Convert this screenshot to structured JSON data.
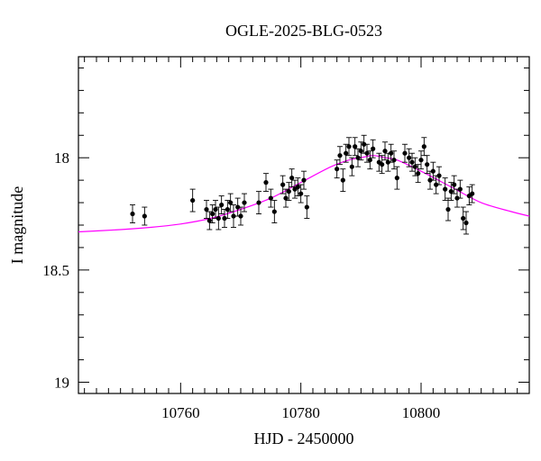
{
  "chart_data": {
    "type": "scatter",
    "title": "OGLE-2025-BLG-0523",
    "xlabel": "HJD - 2450000",
    "ylabel": "I magnitude",
    "xlim": [
      10743,
      10818
    ],
    "ylim": [
      19.05,
      17.55
    ],
    "y_inverted": true,
    "grid": false,
    "x_major_ticks": [
      10760,
      10780,
      10800
    ],
    "x_tick_labels": [
      "10760",
      "10780",
      "10800"
    ],
    "y_major_ticks": [
      18,
      18.5,
      19
    ],
    "y_tick_labels": [
      "18",
      "18.5",
      "19"
    ],
    "colors": {
      "points": "#000000",
      "model": "#ff00ff"
    },
    "series": [
      {
        "type": "scatter_errorbars",
        "x": [
          10752.0,
          10754.0,
          10762.0,
          10764.3,
          10764.8,
          10765.3,
          10765.8,
          10766.3,
          10766.8,
          10767.3,
          10767.8,
          10768.3,
          10768.8,
          10769.5,
          10770.0,
          10770.6,
          10773.0,
          10774.2,
          10775.0,
          10775.6,
          10777.0,
          10777.5,
          10778.0,
          10778.5,
          10779.0,
          10779.5,
          10780.0,
          10780.5,
          10781.0,
          10786.0,
          10786.5,
          10787.0,
          10787.5,
          10788.0,
          10788.5,
          10789.0,
          10789.5,
          10790.0,
          10790.5,
          10791.0,
          10791.5,
          10792.0,
          10793.0,
          10793.5,
          10794.0,
          10794.5,
          10795.0,
          10795.5,
          10796.0,
          10797.3,
          10798.0,
          10798.5,
          10799.0,
          10799.5,
          10800.0,
          10800.5,
          10801.0,
          10801.5,
          10802.0,
          10802.5,
          10803.0,
          10804.0,
          10804.5,
          10805.0,
          10805.5,
          10806.0,
          10806.5,
          10807.0,
          10807.5,
          10808.0,
          10808.5
        ],
        "y": [
          18.25,
          18.26,
          18.19,
          18.23,
          18.28,
          18.25,
          18.23,
          18.27,
          18.21,
          18.27,
          18.23,
          18.2,
          18.26,
          18.22,
          18.26,
          18.2,
          18.2,
          18.11,
          18.18,
          18.24,
          18.12,
          18.18,
          18.15,
          18.09,
          18.14,
          18.13,
          18.16,
          18.1,
          18.22,
          18.05,
          17.99,
          18.1,
          17.98,
          17.95,
          18.04,
          17.95,
          18.0,
          17.97,
          17.94,
          17.98,
          18.01,
          17.96,
          18.02,
          18.03,
          17.97,
          18.02,
          17.98,
          18.01,
          18.09,
          17.98,
          18.0,
          18.02,
          18.04,
          18.07,
          18.01,
          17.95,
          18.03,
          18.1,
          18.06,
          18.12,
          18.08,
          18.14,
          18.23,
          18.15,
          18.12,
          18.18,
          18.14,
          18.27,
          18.29,
          18.17,
          18.16
        ],
        "yerr": [
          0.04,
          0.04,
          0.05,
          0.04,
          0.04,
          0.04,
          0.04,
          0.05,
          0.04,
          0.04,
          0.04,
          0.04,
          0.05,
          0.04,
          0.04,
          0.04,
          0.05,
          0.04,
          0.04,
          0.05,
          0.04,
          0.04,
          0.04,
          0.04,
          0.04,
          0.04,
          0.04,
          0.04,
          0.05,
          0.04,
          0.04,
          0.05,
          0.04,
          0.04,
          0.04,
          0.04,
          0.04,
          0.04,
          0.04,
          0.04,
          0.04,
          0.04,
          0.04,
          0.04,
          0.04,
          0.04,
          0.04,
          0.04,
          0.05,
          0.04,
          0.04,
          0.04,
          0.04,
          0.04,
          0.04,
          0.04,
          0.04,
          0.04,
          0.04,
          0.04,
          0.04,
          0.05,
          0.05,
          0.04,
          0.04,
          0.04,
          0.04,
          0.05,
          0.05,
          0.04,
          0.04
        ]
      },
      {
        "type": "model_curve",
        "x": [
          10743,
          10750,
          10755,
          10760,
          10765,
          10770,
          10775,
          10780,
          10785,
          10788,
          10790,
          10792,
          10794,
          10796,
          10800,
          10805,
          10810,
          10815,
          10818
        ],
        "y": [
          18.33,
          18.32,
          18.31,
          18.295,
          18.27,
          18.23,
          18.18,
          18.11,
          18.04,
          18.01,
          18.0,
          17.99,
          18.0,
          18.01,
          18.06,
          18.13,
          18.2,
          18.24,
          18.26
        ]
      }
    ]
  }
}
